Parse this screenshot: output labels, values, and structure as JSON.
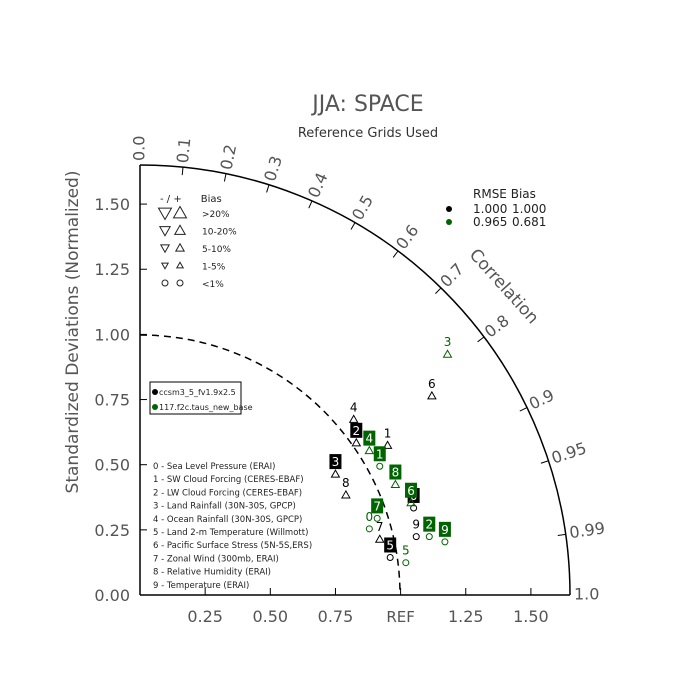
{
  "chart_data": {
    "type": "scatter",
    "subtype": "taylor-diagram",
    "title": "JJA: SPACE",
    "subtitle": "Reference Grids Used",
    "ylabel": "Standardized Deviations (Normalized)",
    "arc_label": "Correlation",
    "ref_label": "REF",
    "xlim": [
      0,
      1.65
    ],
    "ylim": [
      0,
      1.65
    ],
    "x_ticks": [
      "0.25",
      "0.50",
      "0.75",
      "1.25",
      "1.50"
    ],
    "y_ticks": [
      "0.00",
      "0.25",
      "0.50",
      "0.75",
      "1.00",
      "1.25",
      "1.50"
    ],
    "correlation_ticks": [
      "0.0",
      "0.1",
      "0.2",
      "0.3",
      "0.4",
      "0.5",
      "0.6",
      "0.7",
      "0.8",
      "0.9",
      "0.95",
      "0.99",
      "1.0"
    ],
    "bias_legend": {
      "header": "- / +      Bias",
      "rows": [
        ">20%",
        "10-20%",
        "5-10%",
        "1-5%",
        "<1%"
      ]
    },
    "rmse_bias_table": {
      "header": "RMSE Bias",
      "rows": [
        {
          "color": "#000000",
          "rmse": "1.000",
          "bias": "1.000"
        },
        {
          "color": "#006400",
          "rmse": "0.965",
          "bias": "0.681"
        }
      ]
    },
    "cases": [
      {
        "name": "ccsm3_5_fv1.9x2.5",
        "color": "#000000"
      },
      {
        "name": "117.f2c.taus_new_base",
        "color": "#006400"
      }
    ],
    "variable_list": [
      "0 - Sea Level Pressure (ERAI)",
      "1 - SW Cloud Forcing (CERES-EBAF)",
      "2 - LW Cloud Forcing (CERES-EBAF)",
      "3 - Land Rainfall (30N-30S, GPCP)",
      "4 - Ocean Rainfall (30N-30S, GPCP)",
      "5 - Land 2-m Temperature (Willmott)",
      "6 - Pacific Surface Stress (5N-5S,ERS)",
      "7 - Zonal Wind (300mb, ERAI)",
      "8 - Relative Humidity (ERAI)",
      "9 - Temperature (ERAI)"
    ],
    "series": [
      {
        "name": "ccsm3_5_fv1.9x2.5",
        "color": "#000000",
        "points": [
          {
            "label": "0",
            "x": 1.05,
            "y": 0.38,
            "marker": "box",
            "bias": "circle"
          },
          {
            "label": "1",
            "x": 0.95,
            "y": 0.62,
            "marker": "plain",
            "bias": "up-tri"
          },
          {
            "label": "2",
            "x": 0.83,
            "y": 0.63,
            "marker": "box",
            "bias": "up-tri"
          },
          {
            "label": "3",
            "x": 0.75,
            "y": 0.51,
            "marker": "box",
            "bias": "up-tri"
          },
          {
            "label": "4",
            "x": 0.82,
            "y": 0.72,
            "marker": "plain",
            "bias": "up-tri"
          },
          {
            "label": "5",
            "x": 0.96,
            "y": 0.19,
            "marker": "box",
            "bias": "circle"
          },
          {
            "label": "6",
            "x": 1.12,
            "y": 0.81,
            "marker": "plain",
            "bias": "up-tri"
          },
          {
            "label": "7",
            "x": 0.92,
            "y": 0.26,
            "marker": "plain",
            "bias": "up-tri"
          },
          {
            "label": "8",
            "x": 0.79,
            "y": 0.43,
            "marker": "plain",
            "bias": "up-tri"
          },
          {
            "label": "9",
            "x": 1.06,
            "y": 0.27,
            "marker": "plain",
            "bias": "circle"
          }
        ]
      },
      {
        "name": "117.f2c.taus_new_base",
        "color": "#006400",
        "points": [
          {
            "label": "0",
            "x": 0.88,
            "y": 0.3,
            "marker": "plain",
            "bias": "circle"
          },
          {
            "label": "1",
            "x": 0.92,
            "y": 0.54,
            "marker": "box",
            "bias": "circle"
          },
          {
            "label": "2",
            "x": 1.11,
            "y": 0.27,
            "marker": "box",
            "bias": "circle"
          },
          {
            "label": "3",
            "x": 1.18,
            "y": 0.97,
            "marker": "plain",
            "bias": "up-tri"
          },
          {
            "label": "4",
            "x": 0.88,
            "y": 0.6,
            "marker": "box",
            "bias": "up-tri"
          },
          {
            "label": "5",
            "x": 1.02,
            "y": 0.17,
            "marker": "plain",
            "bias": "circle"
          },
          {
            "label": "6",
            "x": 1.04,
            "y": 0.4,
            "marker": "box",
            "bias": "up-tri"
          },
          {
            "label": "7",
            "x": 0.91,
            "y": 0.34,
            "marker": "box",
            "bias": "circle"
          },
          {
            "label": "8",
            "x": 0.98,
            "y": 0.47,
            "marker": "box",
            "bias": "up-tri"
          },
          {
            "label": "9",
            "x": 1.17,
            "y": 0.25,
            "marker": "box",
            "bias": "circle"
          }
        ]
      }
    ]
  }
}
